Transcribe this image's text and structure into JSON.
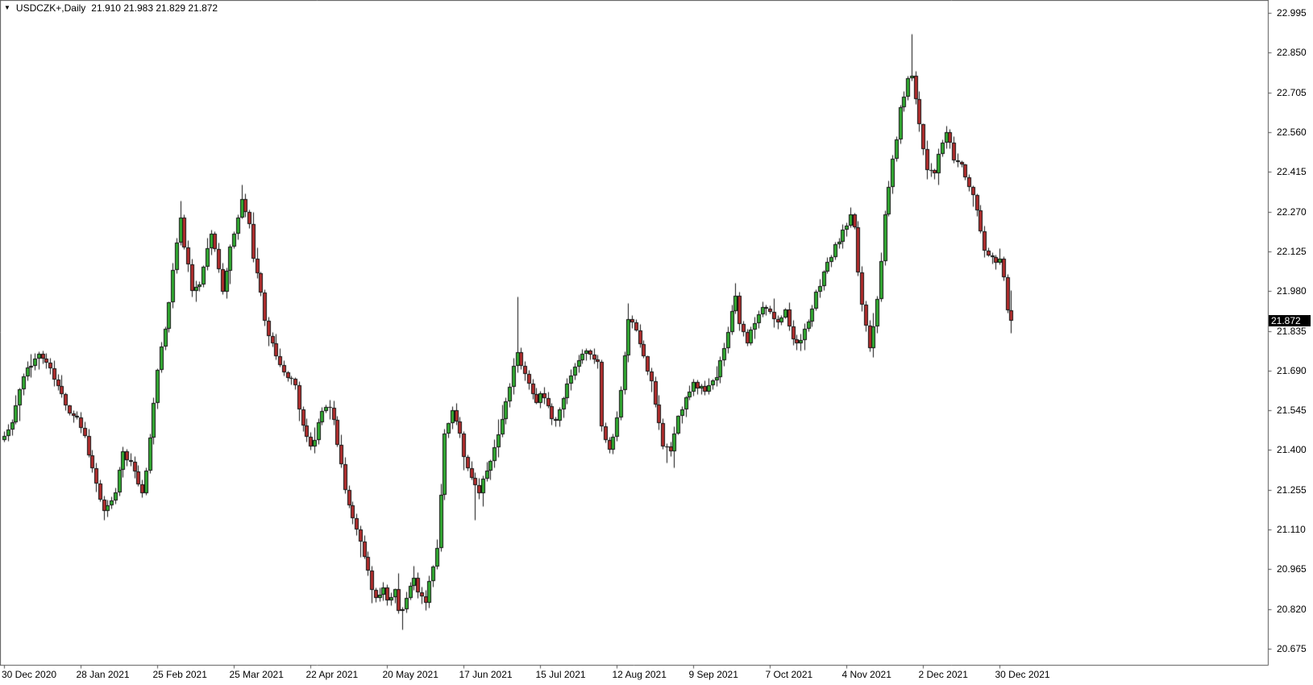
{
  "header": {
    "dropdown_icon": "▼",
    "symbol_label": "USDCZK+,Daily",
    "ohlc_text": "21.910 21.983 21.829 21.872"
  },
  "chart_data": {
    "type": "candlestick",
    "symbol": "USDCZK+",
    "timeframe": "Daily",
    "title": "USDCZK+,Daily",
    "current_bar": {
      "open": "21.910",
      "high": "21.983",
      "low": "21.829",
      "close": "21.872"
    },
    "last_price": "21.872",
    "y_axis": {
      "ticks": [
        "22.995",
        "22.850",
        "22.705",
        "22.560",
        "22.415",
        "22.270",
        "22.125",
        "21.980",
        "21.835",
        "21.690",
        "21.545",
        "21.400",
        "21.255",
        "21.110",
        "20.965",
        "20.820",
        "20.675"
      ],
      "max": 22.995,
      "min": 20.675,
      "step": 0.145
    },
    "x_axis": {
      "labels": [
        "30 Dec 2020",
        "28 Jan 2021",
        "25 Feb 2021",
        "25 Mar 2021",
        "22 Apr 2021",
        "20 May 2021",
        "17 Jun 2021",
        "15 Jul 2021",
        "12 Aug 2021",
        "9 Sep 2021",
        "7 Oct 2021",
        "4 Nov 2021",
        "2 Dec 2021",
        "30 Dec 2021"
      ],
      "bars_per_label": 20
    },
    "grid": "off",
    "legend": "none",
    "bars_total": 264,
    "price_path_anchors": [
      [
        0,
        21.45
      ],
      [
        2,
        21.5
      ],
      [
        4,
        21.62
      ],
      [
        6,
        21.7
      ],
      [
        9,
        21.75
      ],
      [
        11,
        21.72
      ],
      [
        13,
        21.66
      ],
      [
        15,
        21.6
      ],
      [
        17,
        21.54
      ],
      [
        19,
        21.52
      ],
      [
        21,
        21.45
      ],
      [
        23,
        21.33
      ],
      [
        25,
        21.22
      ],
      [
        26,
        21.17
      ],
      [
        28,
        21.21
      ],
      [
        29,
        21.25
      ],
      [
        31,
        21.4
      ],
      [
        33,
        21.35
      ],
      [
        34,
        21.31
      ],
      [
        36,
        21.25
      ],
      [
        37,
        21.32
      ],
      [
        38,
        21.45
      ],
      [
        40,
        21.69
      ],
      [
        42,
        21.85
      ],
      [
        43,
        21.93
      ],
      [
        44,
        22.05
      ],
      [
        45,
        22.16
      ],
      [
        46,
        22.26
      ],
      [
        47,
        22.15
      ],
      [
        48,
        22.07
      ],
      [
        49,
        21.98
      ],
      [
        51,
        22.01
      ],
      [
        52,
        22.07
      ],
      [
        53,
        22.13
      ],
      [
        54,
        22.2
      ],
      [
        55,
        22.13
      ],
      [
        56,
        22.07
      ],
      [
        57,
        21.98
      ],
      [
        58,
        22.05
      ],
      [
        59,
        22.13
      ],
      [
        60,
        22.19
      ],
      [
        61,
        22.25
      ],
      [
        62,
        22.32
      ],
      [
        63,
        22.28
      ],
      [
        64,
        22.22
      ],
      [
        65,
        22.1
      ],
      [
        66,
        22.04
      ],
      [
        67,
        21.98
      ],
      [
        68,
        21.87
      ],
      [
        69,
        21.82
      ],
      [
        70,
        21.78
      ],
      [
        71,
        21.75
      ],
      [
        72,
        21.72
      ],
      [
        73,
        21.68
      ],
      [
        74,
        21.66
      ],
      [
        75,
        21.67
      ],
      [
        76,
        21.64
      ],
      [
        77,
        21.55
      ],
      [
        78,
        21.48
      ],
      [
        79,
        21.44
      ],
      [
        80,
        21.41
      ],
      [
        81,
        21.44
      ],
      [
        82,
        21.49
      ],
      [
        83,
        21.54
      ],
      [
        84,
        21.56
      ],
      [
        85,
        21.56
      ],
      [
        86,
        21.51
      ],
      [
        87,
        21.43
      ],
      [
        88,
        21.34
      ],
      [
        89,
        21.26
      ],
      [
        90,
        21.2
      ],
      [
        91,
        21.16
      ],
      [
        92,
        21.12
      ],
      [
        93,
        21.06
      ],
      [
        94,
        21.01
      ],
      [
        95,
        20.96
      ],
      [
        96,
        20.9
      ],
      [
        97,
        20.86
      ],
      [
        98,
        20.87
      ],
      [
        99,
        20.89
      ],
      [
        100,
        20.84
      ],
      [
        101,
        20.86
      ],
      [
        102,
        20.89
      ],
      [
        103,
        20.81
      ],
      [
        104,
        20.82
      ],
      [
        105,
        20.87
      ],
      [
        106,
        20.9
      ],
      [
        107,
        20.93
      ],
      [
        108,
        20.87
      ],
      [
        109,
        20.86
      ],
      [
        110,
        20.85
      ],
      [
        111,
        20.93
      ],
      [
        112,
        20.97
      ],
      [
        113,
        21.03
      ],
      [
        114,
        21.24
      ],
      [
        115,
        21.45
      ],
      [
        116,
        21.5
      ],
      [
        117,
        21.54
      ],
      [
        118,
        21.5
      ],
      [
        119,
        21.47
      ],
      [
        120,
        21.38
      ],
      [
        121,
        21.33
      ],
      [
        122,
        21.3
      ],
      [
        123,
        21.27
      ],
      [
        124,
        21.25
      ],
      [
        125,
        21.29
      ],
      [
        126,
        21.33
      ],
      [
        127,
        21.37
      ],
      [
        128,
        21.41
      ],
      [
        129,
        21.46
      ],
      [
        130,
        21.52
      ],
      [
        131,
        21.57
      ],
      [
        132,
        21.62
      ],
      [
        133,
        21.7
      ],
      [
        134,
        21.77
      ],
      [
        135,
        21.71
      ],
      [
        136,
        21.67
      ],
      [
        137,
        21.64
      ],
      [
        138,
        21.6
      ],
      [
        139,
        21.57
      ],
      [
        140,
        21.62
      ],
      [
        141,
        21.59
      ],
      [
        142,
        21.56
      ],
      [
        143,
        21.52
      ],
      [
        144,
        21.5
      ],
      [
        145,
        21.56
      ],
      [
        146,
        21.6
      ],
      [
        147,
        21.63
      ],
      [
        148,
        21.67
      ],
      [
        149,
        21.7
      ],
      [
        150,
        21.72
      ],
      [
        151,
        21.74
      ],
      [
        153,
        21.76
      ],
      [
        154,
        21.74
      ],
      [
        155,
        21.72
      ],
      [
        156,
        21.49
      ],
      [
        157,
        21.44
      ],
      [
        158,
        21.4
      ],
      [
        159,
        21.46
      ],
      [
        160,
        21.53
      ],
      [
        161,
        21.62
      ],
      [
        162,
        21.75
      ],
      [
        163,
        21.88
      ],
      [
        165,
        21.84
      ],
      [
        167,
        21.74
      ],
      [
        169,
        21.64
      ],
      [
        171,
        21.5
      ],
      [
        172,
        21.42
      ],
      [
        174,
        21.4
      ],
      [
        176,
        21.52
      ],
      [
        178,
        21.6
      ],
      [
        180,
        21.64
      ],
      [
        183,
        21.62
      ],
      [
        186,
        21.66
      ],
      [
        188,
        21.78
      ],
      [
        190,
        21.9
      ],
      [
        191,
        21.97
      ],
      [
        192,
        21.87
      ],
      [
        194,
        21.8
      ],
      [
        196,
        21.86
      ],
      [
        198,
        21.92
      ],
      [
        200,
        21.9
      ],
      [
        202,
        21.86
      ],
      [
        204,
        21.92
      ],
      [
        206,
        21.8
      ],
      [
        208,
        21.8
      ],
      [
        210,
        21.86
      ],
      [
        212,
        21.97
      ],
      [
        214,
        22.05
      ],
      [
        216,
        22.11
      ],
      [
        218,
        22.17
      ],
      [
        220,
        22.22
      ],
      [
        221,
        22.25
      ],
      [
        222,
        22.2
      ],
      [
        223,
        22.05
      ],
      [
        224,
        21.93
      ],
      [
        226,
        21.78
      ],
      [
        227,
        21.86
      ],
      [
        228,
        21.96
      ],
      [
        229,
        22.1
      ],
      [
        230,
        22.25
      ],
      [
        231,
        22.36
      ],
      [
        232,
        22.46
      ],
      [
        233,
        22.54
      ],
      [
        234,
        22.64
      ],
      [
        235,
        22.7
      ],
      [
        236,
        22.75
      ],
      [
        237,
        22.77
      ],
      [
        238,
        22.69
      ],
      [
        239,
        22.59
      ],
      [
        240,
        22.5
      ],
      [
        241,
        22.43
      ],
      [
        243,
        22.42
      ],
      [
        245,
        22.52
      ],
      [
        246,
        22.56
      ],
      [
        248,
        22.46
      ],
      [
        250,
        22.44
      ],
      [
        252,
        22.36
      ],
      [
        254,
        22.28
      ],
      [
        255,
        22.2
      ],
      [
        256,
        22.13
      ],
      [
        258,
        22.11
      ],
      [
        259,
        22.08
      ],
      [
        260,
        22.11
      ],
      [
        261,
        22.04
      ],
      [
        262,
        21.91
      ],
      [
        263,
        21.872
      ]
    ],
    "forced_wick_highs": [
      [
        46,
        22.31
      ],
      [
        62,
        22.37
      ],
      [
        134,
        21.96
      ],
      [
        163,
        21.935
      ],
      [
        191,
        22.01
      ],
      [
        221,
        22.285
      ],
      [
        237,
        22.92
      ]
    ],
    "forced_wick_lows": [
      [
        26,
        21.145
      ],
      [
        104,
        20.745
      ],
      [
        123,
        21.145
      ],
      [
        173,
        21.355
      ]
    ],
    "last_bar_ohlc": [
      21.91,
      21.983,
      21.829,
      21.872
    ],
    "colors": {
      "background": "#ffffff",
      "up_fill": "#32ab32",
      "down_fill": "#b22e2e",
      "candle_outline": "#111111",
      "wick": "#111111",
      "axis_frame": "#555555",
      "axis_text": "#000000",
      "badge_bg": "#000000",
      "badge_text": "#ffffff"
    }
  }
}
